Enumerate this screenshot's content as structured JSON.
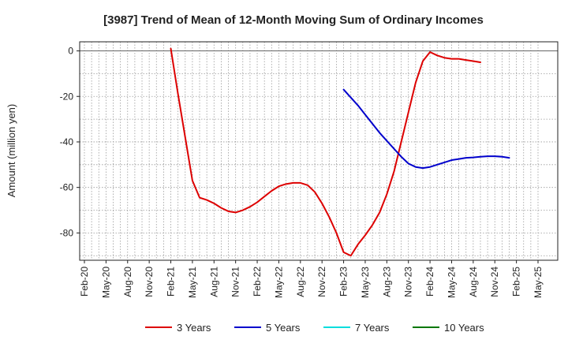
{
  "chart_data": {
    "type": "line",
    "title": "[3987]  Trend of Mean of 12-Month Moving Sum of Ordinary Incomes",
    "xlabel": "",
    "ylabel": "Amount (million yen)",
    "ylim": [
      -92,
      4
    ],
    "yticks": [
      0,
      -20,
      -40,
      -60,
      -80
    ],
    "xlim": [
      0,
      61
    ],
    "xticks": [
      {
        "pos": 0,
        "label": "Feb-20"
      },
      {
        "pos": 3,
        "label": "May-20"
      },
      {
        "pos": 6,
        "label": "Aug-20"
      },
      {
        "pos": 9,
        "label": "Nov-20"
      },
      {
        "pos": 12,
        "label": "Feb-21"
      },
      {
        "pos": 15,
        "label": "May-21"
      },
      {
        "pos": 18,
        "label": "Aug-21"
      },
      {
        "pos": 21,
        "label": "Nov-21"
      },
      {
        "pos": 24,
        "label": "Feb-22"
      },
      {
        "pos": 27,
        "label": "May-22"
      },
      {
        "pos": 30,
        "label": "Aug-22"
      },
      {
        "pos": 33,
        "label": "Nov-22"
      },
      {
        "pos": 36,
        "label": "Feb-23"
      },
      {
        "pos": 39,
        "label": "May-23"
      },
      {
        "pos": 42,
        "label": "Aug-23"
      },
      {
        "pos": 45,
        "label": "Nov-23"
      },
      {
        "pos": 48,
        "label": "Feb-24"
      },
      {
        "pos": 51,
        "label": "May-24"
      },
      {
        "pos": 54,
        "label": "Aug-24"
      },
      {
        "pos": 57,
        "label": "Nov-24"
      },
      {
        "pos": 60,
        "label": "Feb-25"
      },
      {
        "pos": 63,
        "label": "May-25"
      }
    ],
    "grid": true,
    "legend_position": "bottom",
    "series": [
      {
        "name": "3 Years",
        "color": "#dd0000",
        "start": 12,
        "values": [
          1,
          -19,
          -38,
          -57,
          -64.5,
          -65.5,
          -67,
          -69,
          -70.5,
          -71,
          -70,
          -68.5,
          -66.5,
          -64,
          -61.5,
          -59.5,
          -58.5,
          -58,
          -58,
          -59,
          -62,
          -67,
          -73,
          -80,
          -88.5,
          -90,
          -85,
          -81,
          -76.5,
          -71,
          -63,
          -53,
          -40,
          -27,
          -14,
          -4.5,
          -0.5,
          -2,
          -3,
          -3.5,
          -3.5,
          -4,
          -4.5,
          -5
        ]
      },
      {
        "name": "5 Years",
        "color": "#0000cc",
        "start": 36,
        "values": [
          -17,
          -20.5,
          -24,
          -28,
          -32,
          -36,
          -39.5,
          -43,
          -46.5,
          -49.5,
          -51,
          -51.5,
          -51,
          -50,
          -49,
          -48,
          -47.5,
          -47,
          -46.8,
          -46.5,
          -46.3,
          -46.3,
          -46.5,
          -47
        ]
      },
      {
        "name": "7 Years",
        "color": "#00dddd",
        "start": 0,
        "values": []
      },
      {
        "name": "10 Years",
        "color": "#007700",
        "start": 0,
        "values": []
      }
    ]
  }
}
